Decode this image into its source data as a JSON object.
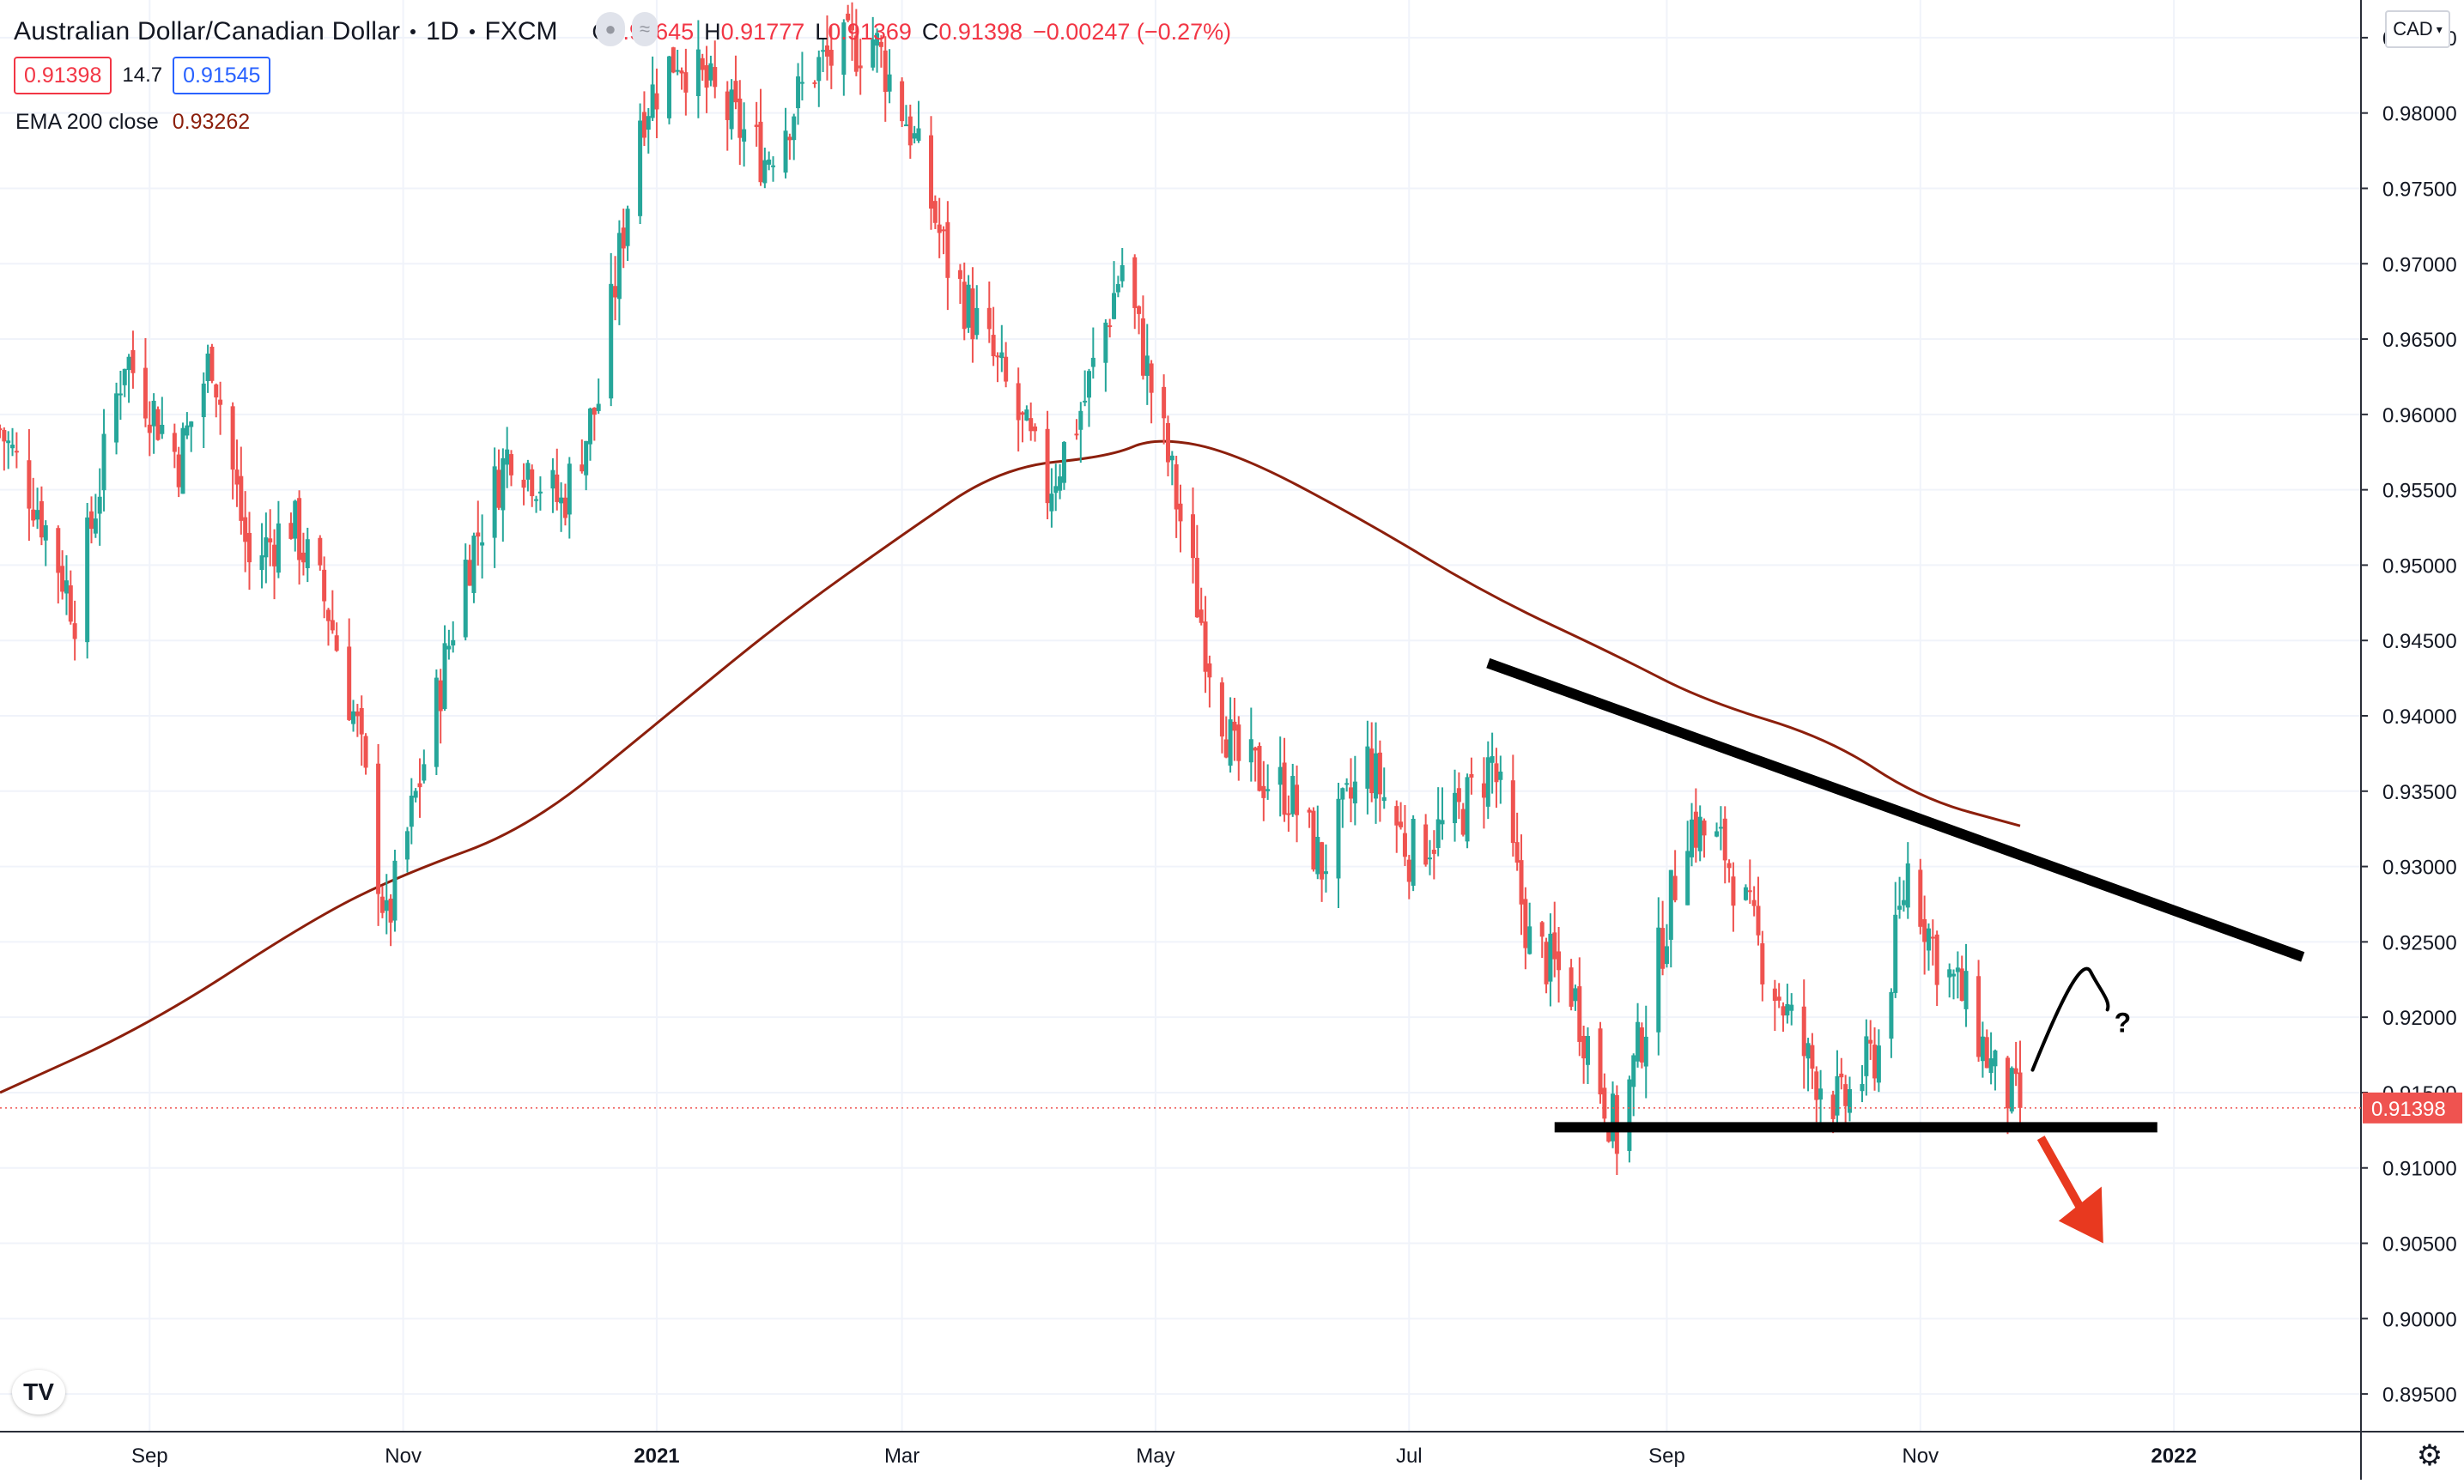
{
  "header": {
    "symbol": "Australian Dollar/Canadian Dollar",
    "interval": "1D",
    "exchange": "FXCM",
    "open_label": "O",
    "open": "0.91645",
    "high_label": "H",
    "high": "0.91777",
    "low_label": "L",
    "low": "0.91369",
    "close_label": "C",
    "close": "0.91398",
    "change": "−0.00247 (−0.27%)"
  },
  "quote": {
    "sell": "0.91398",
    "spread": "14.7",
    "buy": "0.91545"
  },
  "indicator": {
    "label": "EMA 200 close",
    "value": "0.93262"
  },
  "currency_button": {
    "label": "CAD"
  },
  "colors": {
    "up": "#26a69a",
    "down": "#ef5350",
    "ema": "#8c1f0c",
    "annotation": "#000000",
    "arrow": "#e8391f"
  },
  "chart_data": {
    "type": "candlestick",
    "y_axis": {
      "min": 0.8925,
      "max": 0.9875,
      "side": "right",
      "ticks": [
        "0.98500",
        "0.98000",
        "0.97500",
        "0.97000",
        "0.96500",
        "0.96000",
        "0.95500",
        "0.95000",
        "0.94500",
        "0.94000",
        "0.93500",
        "0.93000",
        "0.92500",
        "0.92000",
        "0.91500",
        "0.91000",
        "0.90500",
        "0.90000",
        "0.89500"
      ],
      "tick_values": [
        0.985,
        0.98,
        0.975,
        0.97,
        0.965,
        0.96,
        0.955,
        0.95,
        0.945,
        0.94,
        0.935,
        0.93,
        0.925,
        0.92,
        0.915,
        0.91,
        0.905,
        0.9,
        0.895
      ]
    },
    "x_axis": {
      "start": "2020-07-27",
      "end": "2022-02-15",
      "ticks": [
        {
          "label": "Sep",
          "date": "2020-09-01"
        },
        {
          "label": "Nov",
          "date": "2020-11-01"
        },
        {
          "label": "2021",
          "date": "2021-01-01",
          "bold": true
        },
        {
          "label": "Mar",
          "date": "2021-03-01"
        },
        {
          "label": "May",
          "date": "2021-05-01"
        },
        {
          "label": "Jul",
          "date": "2021-07-01"
        },
        {
          "label": "Sep",
          "date": "2021-09-01"
        },
        {
          "label": "Nov",
          "date": "2021-11-01"
        },
        {
          "label": "2022",
          "date": "2022-01-01",
          "bold": true
        }
      ]
    },
    "grid": true,
    "last_price": {
      "label": "0.91398",
      "value": 0.91398
    },
    "anchors": [
      {
        "date": "2020-07-27",
        "close": 0.959
      },
      {
        "date": "2020-08-05",
        "close": 0.954
      },
      {
        "date": "2020-08-14",
        "close": 0.947
      },
      {
        "date": "2020-08-26",
        "close": 0.964
      },
      {
        "date": "2020-09-08",
        "close": 0.957
      },
      {
        "date": "2020-09-16",
        "close": 0.964
      },
      {
        "date": "2020-09-25",
        "close": 0.95
      },
      {
        "date": "2020-10-05",
        "close": 0.953
      },
      {
        "date": "2020-10-14",
        "close": 0.947
      },
      {
        "date": "2020-10-21",
        "close": 0.939
      },
      {
        "date": "2020-10-28",
        "close": 0.926
      },
      {
        "date": "2020-11-06",
        "close": 0.937
      },
      {
        "date": "2020-11-16",
        "close": 0.95
      },
      {
        "date": "2020-11-27",
        "close": 0.958
      },
      {
        "date": "2020-12-09",
        "close": 0.954
      },
      {
        "date": "2020-12-18",
        "close": 0.961
      },
      {
        "date": "2020-12-28",
        "close": 0.98
      },
      {
        "date": "2021-01-06",
        "close": 0.984
      },
      {
        "date": "2021-01-18",
        "close": 0.98
      },
      {
        "date": "2021-01-27",
        "close": 0.977
      },
      {
        "date": "2021-02-08",
        "close": 0.983
      },
      {
        "date": "2021-02-22",
        "close": 0.985
      },
      {
        "date": "2021-03-03",
        "close": 0.979
      },
      {
        "date": "2021-03-12",
        "close": 0.97
      },
      {
        "date": "2021-03-24",
        "close": 0.963
      },
      {
        "date": "2021-04-05",
        "close": 0.955
      },
      {
        "date": "2021-04-14",
        "close": 0.961
      },
      {
        "date": "2021-04-23",
        "close": 0.97
      },
      {
        "date": "2021-05-04",
        "close": 0.957
      },
      {
        "date": "2021-05-13",
        "close": 0.945
      },
      {
        "date": "2021-05-20",
        "close": 0.937
      },
      {
        "date": "2021-06-02",
        "close": 0.935
      },
      {
        "date": "2021-06-10",
        "close": 0.93
      },
      {
        "date": "2021-06-21",
        "close": 0.937
      },
      {
        "date": "2021-07-01",
        "close": 0.931
      },
      {
        "date": "2021-07-12",
        "close": 0.933
      },
      {
        "date": "2021-07-21",
        "close": 0.937
      },
      {
        "date": "2021-07-30",
        "close": 0.925
      },
      {
        "date": "2021-08-09",
        "close": 0.922
      },
      {
        "date": "2021-08-20",
        "close": 0.912
      },
      {
        "date": "2021-08-27",
        "close": 0.92
      },
      {
        "date": "2021-09-06",
        "close": 0.933
      },
      {
        "date": "2021-09-15",
        "close": 0.931
      },
      {
        "date": "2021-09-24",
        "close": 0.924
      },
      {
        "date": "2021-10-05",
        "close": 0.917
      },
      {
        "date": "2021-10-13",
        "close": 0.914
      },
      {
        "date": "2021-10-22",
        "close": 0.918
      },
      {
        "date": "2021-10-29",
        "close": 0.93
      },
      {
        "date": "2021-11-05",
        "close": 0.924
      },
      {
        "date": "2021-11-12",
        "close": 0.921
      },
      {
        "date": "2021-11-19",
        "close": 0.916
      },
      {
        "date": "2021-11-25",
        "close": 0.91398
      }
    ],
    "ema_200": [
      {
        "date": "2020-07-27",
        "value": 0.915
      },
      {
        "date": "2020-09-01",
        "value": 0.9195
      },
      {
        "date": "2020-10-10",
        "value": 0.9265
      },
      {
        "date": "2020-11-01",
        "value": 0.9295
      },
      {
        "date": "2020-12-01",
        "value": 0.9325
      },
      {
        "date": "2021-01-01",
        "value": 0.9395
      },
      {
        "date": "2021-02-01",
        "value": 0.9465
      },
      {
        "date": "2021-03-01",
        "value": 0.952
      },
      {
        "date": "2021-03-25",
        "value": 0.9565
      },
      {
        "date": "2021-04-20",
        "value": 0.9572
      },
      {
        "date": "2021-05-01",
        "value": 0.9585
      },
      {
        "date": "2021-05-20",
        "value": 0.9575
      },
      {
        "date": "2021-06-20",
        "value": 0.953
      },
      {
        "date": "2021-07-20",
        "value": 0.948
      },
      {
        "date": "2021-08-20",
        "value": 0.944
      },
      {
        "date": "2021-09-10",
        "value": 0.941
      },
      {
        "date": "2021-10-10",
        "value": 0.9385
      },
      {
        "date": "2021-11-01",
        "value": 0.9345
      },
      {
        "date": "2021-11-25",
        "value": 0.9327
      }
    ],
    "annotations": {
      "resistance_line": {
        "from": {
          "date": "2021-07-20",
          "value": 0.9435
        },
        "to": {
          "date": "2022-02-01",
          "value": 0.924
        }
      },
      "support_line": {
        "from": {
          "date": "2021-08-05",
          "value": 0.9127
        },
        "to": {
          "date": "2021-12-28",
          "value": 0.9127
        }
      },
      "bounce_curve": {
        "from": {
          "date": "2021-11-28",
          "value": 0.9165
        },
        "peak": {
          "date": "2021-12-12",
          "value": 0.923
        },
        "to": {
          "date": "2021-12-16",
          "value": 0.9205
        }
      },
      "question_label": "?",
      "down_arrow": {
        "from": {
          "date": "2021-11-30",
          "value": 0.912
        },
        "to": {
          "date": "2021-12-15",
          "value": 0.905
        }
      }
    }
  }
}
